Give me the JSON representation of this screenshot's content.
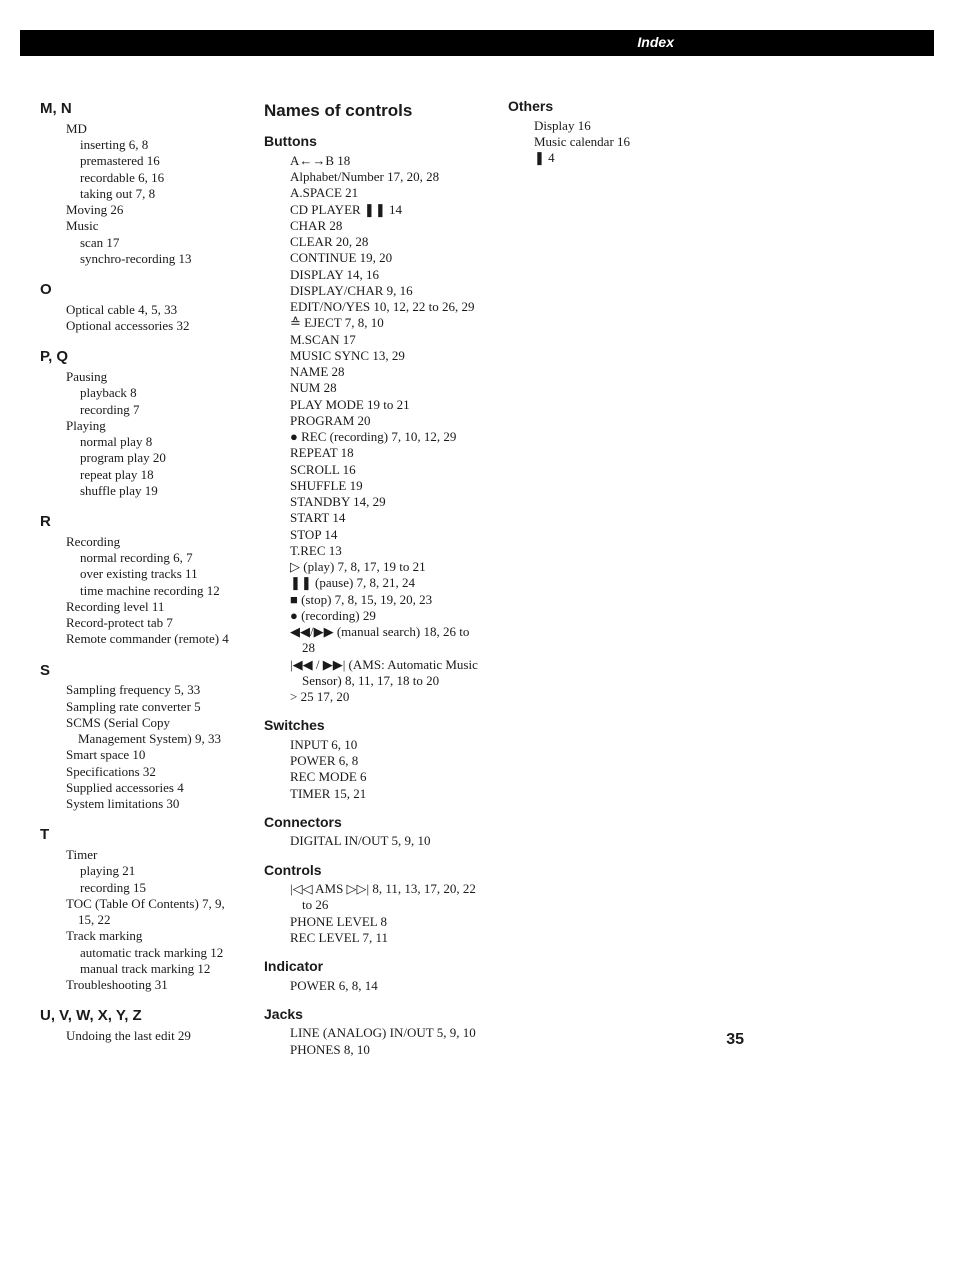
{
  "header": {
    "title": "Index"
  },
  "pageNumber": "35",
  "col1": {
    "groups": [
      {
        "head": "M, N",
        "items": [
          {
            "l": 1,
            "t": "MD"
          },
          {
            "l": 2,
            "t": "inserting  6, 8"
          },
          {
            "l": 2,
            "t": "premastered  16"
          },
          {
            "l": 2,
            "t": "recordable  6, 16"
          },
          {
            "l": 2,
            "t": "taking out  7, 8"
          },
          {
            "l": 1,
            "t": "Moving  26"
          },
          {
            "l": 1,
            "t": "Music"
          },
          {
            "l": 2,
            "t": "scan  17"
          },
          {
            "l": 2,
            "t": "synchro-recording  13"
          }
        ]
      },
      {
        "head": "O",
        "items": [
          {
            "l": 1,
            "t": "Optical cable  4, 5, 33"
          },
          {
            "l": 1,
            "t": "Optional accessories  32"
          }
        ]
      },
      {
        "head": "P, Q",
        "items": [
          {
            "l": 1,
            "t": "Pausing"
          },
          {
            "l": 2,
            "t": "playback  8"
          },
          {
            "l": 2,
            "t": "recording  7"
          },
          {
            "l": 1,
            "t": "Playing"
          },
          {
            "l": 2,
            "t": "normal play  8"
          },
          {
            "l": 2,
            "t": "program play  20"
          },
          {
            "l": 2,
            "t": "repeat play  18"
          },
          {
            "l": 2,
            "t": "shuffle play  19"
          }
        ]
      },
      {
        "head": "R",
        "items": [
          {
            "l": 1,
            "t": "Recording"
          },
          {
            "l": 2,
            "t": "normal recording  6, 7"
          },
          {
            "l": 2,
            "t": "over existing tracks  11"
          },
          {
            "l": 2,
            "t": "time machine recording  12"
          },
          {
            "l": 1,
            "t": "Recording level  11"
          },
          {
            "l": 1,
            "t": "Record-protect tab  7"
          },
          {
            "l": 1,
            "t": "Remote commander (remote)  4"
          }
        ]
      },
      {
        "head": "S",
        "items": [
          {
            "l": 1,
            "t": "Sampling frequency  5, 33"
          },
          {
            "l": 1,
            "t": "Sampling rate converter  5"
          },
          {
            "l": 1,
            "t": "SCMS (Serial Copy Management System)  9, 33"
          },
          {
            "l": 1,
            "t": "Smart space  10"
          },
          {
            "l": 1,
            "t": "Specifications  32"
          },
          {
            "l": 1,
            "t": "Supplied accessories  4"
          },
          {
            "l": 1,
            "t": "System limitations  30"
          }
        ]
      },
      {
        "head": "T",
        "items": [
          {
            "l": 1,
            "t": "Timer"
          },
          {
            "l": 2,
            "t": "playing  21"
          },
          {
            "l": 2,
            "t": "recording  15"
          },
          {
            "l": 1,
            "t": "TOC (Table Of Contents)  7, 9, 15, 22"
          },
          {
            "l": 1,
            "t": "Track marking"
          },
          {
            "l": 2,
            "t": "automatic track marking  12"
          },
          {
            "l": 2,
            "t": "manual track marking  12"
          },
          {
            "l": 1,
            "t": "Troubleshooting  31"
          }
        ]
      },
      {
        "head": "U, V, W, X, Y, Z",
        "items": [
          {
            "l": 1,
            "t": "Undoing the last edit  29"
          }
        ]
      }
    ]
  },
  "col2": {
    "title": "Names of controls",
    "groups": [
      {
        "head": "Buttons",
        "items": [
          {
            "l": 1,
            "t": "A←→B  18"
          },
          {
            "l": 1,
            "t": "Alphabet/Number  17, 20, 28"
          },
          {
            "l": 1,
            "t": "A.SPACE  21"
          },
          {
            "l": 1,
            "t": "CD PLAYER ❚❚  14"
          },
          {
            "l": 1,
            "t": "CHAR  28"
          },
          {
            "l": 1,
            "t": "CLEAR  20, 28"
          },
          {
            "l": 1,
            "t": "CONTINUE  19, 20"
          },
          {
            "l": 1,
            "t": "DISPLAY  14, 16"
          },
          {
            "l": 1,
            "t": "DISPLAY/CHAR  9, 16"
          },
          {
            "l": 1,
            "t": "EDIT/NO/YES  10, 12, 22 to 26, 29"
          },
          {
            "l": 1,
            "t": "≙ EJECT  7, 8, 10"
          },
          {
            "l": 1,
            "t": "M.SCAN  17"
          },
          {
            "l": 1,
            "t": "MUSIC SYNC  13, 29"
          },
          {
            "l": 1,
            "t": "NAME  28"
          },
          {
            "l": 1,
            "t": "NUM  28"
          },
          {
            "l": 1,
            "t": "PLAY MODE  19 to 21"
          },
          {
            "l": 1,
            "t": "PROGRAM  20"
          },
          {
            "l": 1,
            "t": "● REC (recording)  7, 10, 12, 29"
          },
          {
            "l": 1,
            "t": "REPEAT  18"
          },
          {
            "l": 1,
            "t": "SCROLL  16"
          },
          {
            "l": 1,
            "t": "SHUFFLE  19"
          },
          {
            "l": 1,
            "t": "STANDBY  14, 29"
          },
          {
            "l": 1,
            "t": "START  14"
          },
          {
            "l": 1,
            "t": "STOP  14"
          },
          {
            "l": 1,
            "t": "T.REC  13"
          },
          {
            "l": 1,
            "t": "▷ (play)  7, 8, 17, 19 to 21"
          },
          {
            "l": 1,
            "t": "❚❚ (pause)  7, 8, 21, 24"
          },
          {
            "l": 1,
            "t": "■ (stop)  7, 8, 15, 19, 20, 23"
          },
          {
            "l": 1,
            "t": "● (recording)  29"
          },
          {
            "l": 1,
            "t": "◀◀/▶▶ (manual search)  18, 26 to 28"
          },
          {
            "l": 1,
            "t": "|◀◀ / ▶▶| (AMS: Automatic Music Sensor)  8, 11, 17, 18 to 20"
          },
          {
            "l": 1,
            "t": "> 25  17, 20"
          }
        ]
      },
      {
        "head": "Switches",
        "items": [
          {
            "l": 1,
            "t": "INPUT  6, 10"
          },
          {
            "l": 1,
            "t": "POWER  6, 8"
          },
          {
            "l": 1,
            "t": "REC MODE  6"
          },
          {
            "l": 1,
            "t": "TIMER  15, 21"
          }
        ]
      },
      {
        "head": "Connectors",
        "items": [
          {
            "l": 1,
            "t": "DIGITAL IN/OUT  5, 9, 10"
          }
        ]
      },
      {
        "head": "Controls",
        "items": [
          {
            "l": 1,
            "t": "|◁◁ AMS ▷▷|  8, 11, 13, 17, 20, 22 to 26"
          },
          {
            "l": 1,
            "t": "PHONE LEVEL  8"
          },
          {
            "l": 1,
            "t": "REC LEVEL  7, 11"
          }
        ]
      },
      {
        "head": "Indicator",
        "items": [
          {
            "l": 1,
            "t": "POWER  6, 8, 14"
          }
        ]
      },
      {
        "head": "Jacks",
        "items": [
          {
            "l": 1,
            "t": "LINE (ANALOG) IN/OUT  5, 9, 10"
          },
          {
            "l": 1,
            "t": "PHONES  8, 10"
          }
        ]
      }
    ]
  },
  "col3": {
    "groups": [
      {
        "head": "Others",
        "items": [
          {
            "l": 1,
            "t": "Display  16"
          },
          {
            "l": 1,
            "t": "Music calendar  16"
          },
          {
            "l": 1,
            "t": "❚  4"
          }
        ]
      }
    ]
  }
}
